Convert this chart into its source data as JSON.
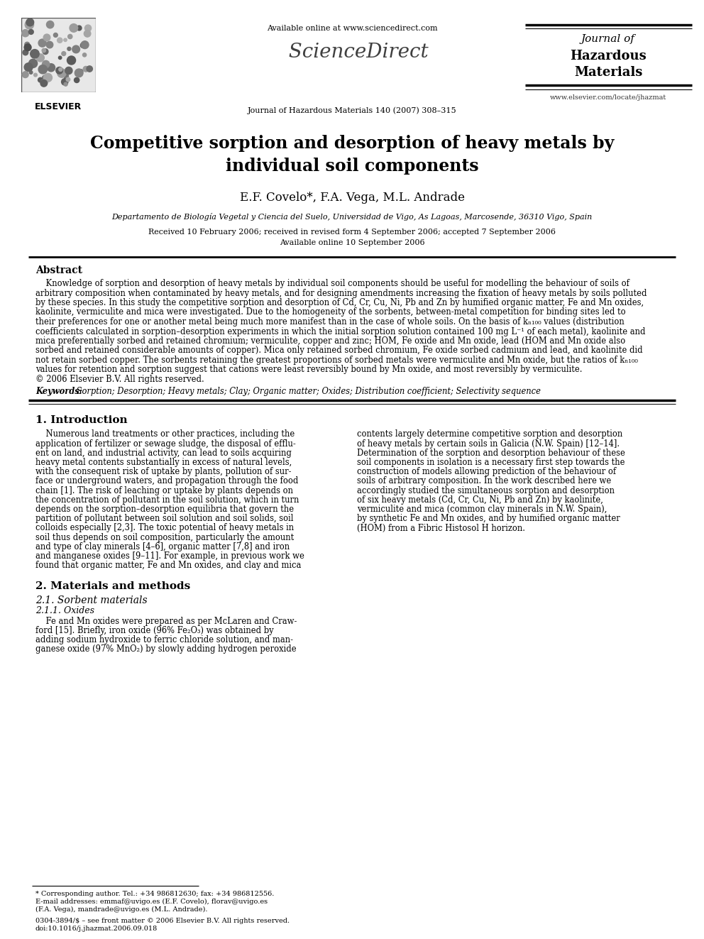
{
  "bg_color": "#ffffff",
  "page_width": 9.92,
  "page_height": 13.23,
  "dpi": 100,
  "header": {
    "available_online": "Available online at www.sciencedirect.com",
    "sciencedirect": "ScienceDirect",
    "journal_line": "Journal of Hazardous Materials 140 (2007) 308–315",
    "journal_title_line1": "Journal of",
    "journal_title_line2": "Hazardous",
    "journal_title_line3": "Materials",
    "journal_url": "www.elsevier.com/locate/jhazmat",
    "elsevier_label": "ELSEVIER"
  },
  "title_line1": "Competitive sorption and desorption of heavy metals by",
  "title_line2": "individual soil components",
  "authors": "E.F. Covelo",
  "authors2": "*, F.A. Vega, M.L. Andrade",
  "affiliation": "Departamento de Biología Vegetal y Ciencia del Suelo, Universidad de Vigo, As Lagoas, Marcosende, 36310 Vigo, Spain",
  "received": "Received 10 February 2006; received in revised form 4 September 2006; accepted 7 September 2006",
  "available": "Available online 10 September 2006",
  "abstract_title": "Abstract",
  "abstract_lines": [
    "    Knowledge of sorption and desorption of heavy metals by individual soil components should be useful for modelling the behaviour of soils of",
    "arbitrary composition when contaminated by heavy metals, and for designing amendments increasing the fixation of heavy metals by soils polluted",
    "by these species. In this study the competitive sorption and desorption of Cd, Cr, Cu, Ni, Pb and Zn by humified organic matter, Fe and Mn oxides,",
    "kaolinite, vermiculite and mica were investigated. Due to the homogeneity of the sorbents, between-metal competition for binding sites led to",
    "their preferences for one or another metal being much more manifest than in the case of whole soils. On the basis of kₙ₁₀₀ values (distribution",
    "coefficients calculated in sorption–desorption experiments in which the initial sorption solution contained 100 mg L⁻¹ of each metal), kaolinite and",
    "mica preferentially sorbed and retained chromium; vermiculite, copper and zinc; HOM, Fe oxide and Mn oxide, lead (HOM and Mn oxide also",
    "sorbed and retained considerable amounts of copper). Mica only retained sorbed chromium, Fe oxide sorbed cadmium and lead, and kaolinite did",
    "not retain sorbed copper. The sorbents retaining the greatest proportions of sorbed metals were vermiculite and Mn oxide, but the ratios of kₙ₁₀₀",
    "values for retention and sorption suggest that cations were least reversibly bound by Mn oxide, and most reversibly by vermiculite.",
    "© 2006 Elsevier B.V. All rights reserved."
  ],
  "keywords_label": "Keywords: ",
  "keywords_text": " Sorption; Desorption; Heavy metals; Clay; Organic matter; Oxides; Distribution coefficient; Selectivity sequence",
  "section1_title": "1. Introduction",
  "intro_left_lines": [
    "    Numerous land treatments or other practices, including the",
    "application of fertilizer or sewage sludge, the disposal of efflu-",
    "ent on land, and industrial activity, can lead to soils acquiring",
    "heavy metal contents substantially in excess of natural levels,",
    "with the consequent risk of uptake by plants, pollution of sur-",
    "face or underground waters, and propagation through the food",
    "chain [1]. The risk of leaching or uptake by plants depends on",
    "the concentration of pollutant in the soil solution, which in turn",
    "depends on the sorption–desorption equilibria that govern the",
    "partition of pollutant between soil solution and soil solids, soil",
    "colloids especially [2,3]. The toxic potential of heavy metals in",
    "soil thus depends on soil composition, particularly the amount",
    "and type of clay minerals [4–6], organic matter [7,8] and iron",
    "and manganese oxides [9–11]. For example, in previous work we",
    "found that organic matter, Fe and Mn oxides, and clay and mica"
  ],
  "intro_right_lines": [
    "contents largely determine competitive sorption and desorption",
    "of heavy metals by certain soils in Galicia (N.W. Spain) [12–14].",
    "Determination of the sorption and desorption behaviour of these",
    "soil components in isolation is a necessary first step towards the",
    "construction of models allowing prediction of the behaviour of",
    "soils of arbitrary composition. In the work described here we",
    "accordingly studied the simultaneous sorption and desorption",
    "of six heavy metals (Cd, Cr, Cu, Ni, Pb and Zn) by kaolinite,",
    "vermiculite and mica (common clay minerals in N.W. Spain),",
    "by synthetic Fe and Mn oxides, and by humified organic matter",
    "(HOM) from a Fibric Histosol H horizon."
  ],
  "section2_title": "2. Materials and methods",
  "section21_title": "2.1. Sorbent materials",
  "section211_title": "2.1.1. Oxides",
  "oxides_left_lines": [
    "    Fe and Mn oxides were prepared as per McLaren and Craw-",
    "ford [15]. Briefly, iron oxide (96% Fe₂O₃) was obtained by",
    "adding sodium hydroxide to ferric chloride solution, and man-",
    "ganese oxide (97% MnO₂) by slowly adding hydrogen peroxide"
  ],
  "footnote_star": "* Corresponding author. Tel.: +34 986812630; fax: +34 986812556.",
  "footnote_email1": "E-mail addresses: emmaf@uvigo.es (E.F. Covelo), florav@uvigo.es",
  "footnote_email2": "(F.A. Vega), mandrade@uvigo.es (M.L. Andrade).",
  "footnote_issn": "0304-3894/$ – see front matter © 2006 Elsevier B.V. All rights reserved.",
  "footnote_doi": "doi:10.1016/j.jhazmat.2006.09.018"
}
